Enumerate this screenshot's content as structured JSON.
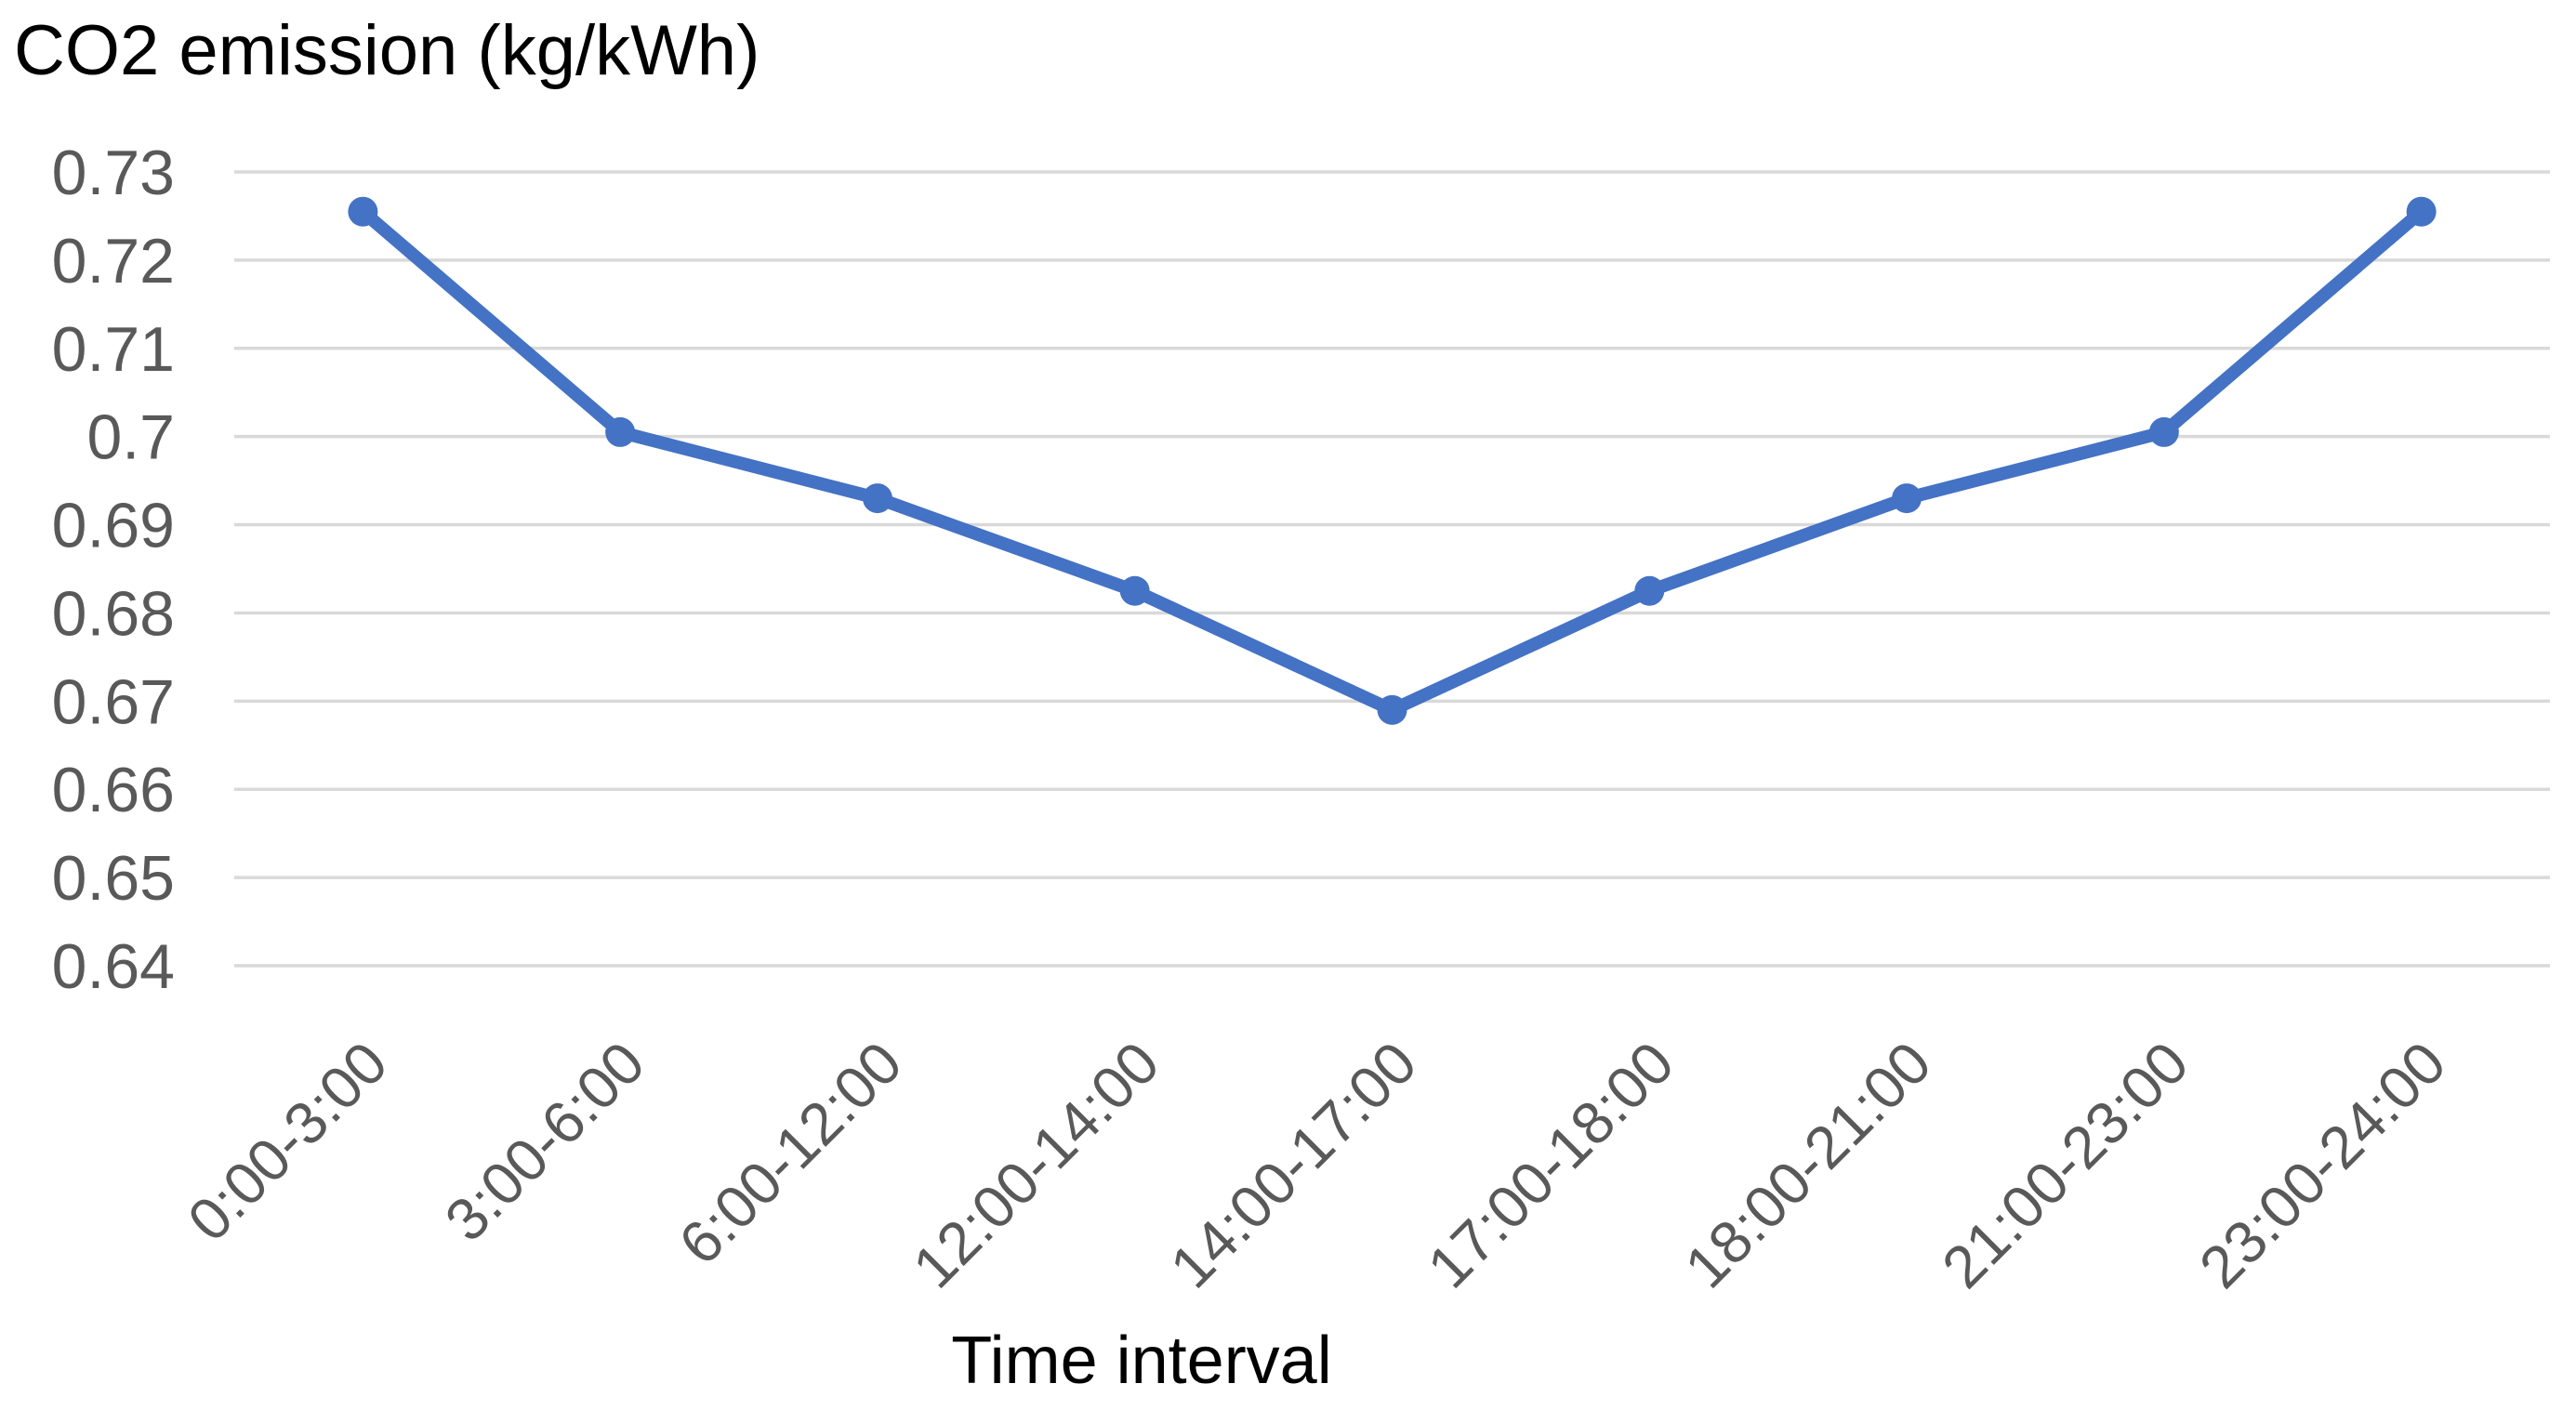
{
  "chart_data": {
    "type": "line",
    "title": "CO2 emission (kg/kWh)",
    "xlabel": "Time interval",
    "ylabel": "CO2 emission (kg/kWh)",
    "categories": [
      "0:00-3:00",
      "3:00-6:00",
      "6:00-12:00",
      "12:00-14:00",
      "14:00-17:00",
      "17:00-18:00",
      "18:00-21:00",
      "21:00-23:00",
      "23:00-24:00"
    ],
    "values": [
      0.7255,
      0.7005,
      0.693,
      0.6825,
      0.669,
      0.6825,
      0.693,
      0.7005,
      0.7255
    ],
    "series_name": "CO2 emission",
    "y_tick_labels": [
      "0.73",
      "0.72",
      "0.71",
      "0.7",
      "0.69",
      "0.68",
      "0.67",
      "0.66",
      "0.65",
      "0.64"
    ],
    "ylim": [
      0.64,
      0.73
    ],
    "grid": true,
    "legend_position": "none",
    "line_color": "#4472C4",
    "marker_color": "#4472C4",
    "marker_shape": "circle",
    "gridline_color": "#D9D9D9",
    "tick_label_color": "#595959",
    "title_color": "#000000"
  }
}
